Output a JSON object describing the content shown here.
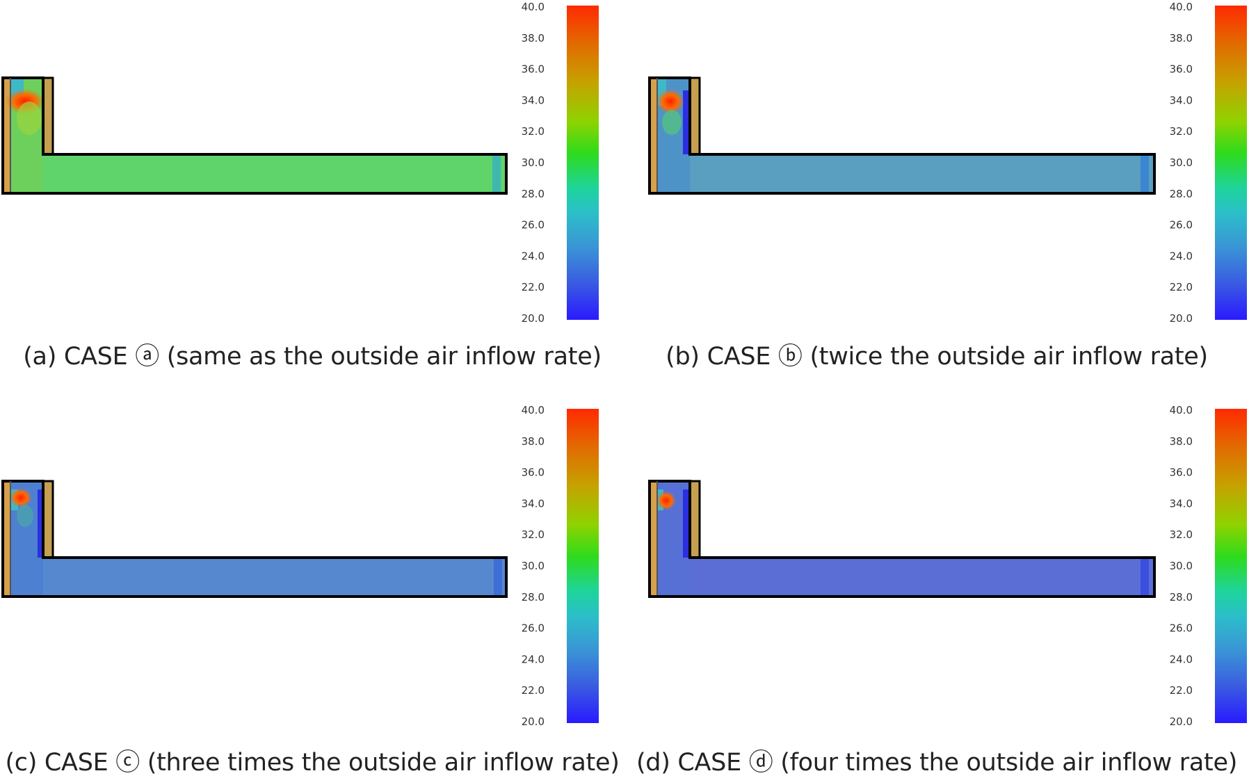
{
  "colorbar": {
    "min": 20.0,
    "max": 40.0,
    "ticks": [
      "40.0",
      "38.0",
      "36.0",
      "34.0",
      "32.0",
      "30.0",
      "28.0",
      "26.0",
      "24.0",
      "22.0",
      "20.0"
    ],
    "stops": [
      "#ff2a00",
      "#e26a00",
      "#c4a400",
      "#8ed300",
      "#2edb1c",
      "#1ed49a",
      "#2bbfc9",
      "#3a94d6",
      "#3a5de0",
      "#2a1aff"
    ]
  },
  "panels": [
    {
      "id": "a",
      "caption": "(a) CASE ⓐ (same as the outside air inflow rate)",
      "corridor_temp": 30.5,
      "corridor_color": "#5fd46a",
      "room_color": "#6dd05c"
    },
    {
      "id": "b",
      "caption": "(b) CASE ⓑ (twice the outside air inflow rate)",
      "corridor_temp": 27.2,
      "corridor_color": "#5a9fc0",
      "room_color": "#4e93c7"
    },
    {
      "id": "c",
      "caption": "(c) CASE ⓒ (three times the outside air inflow rate)",
      "corridor_temp": 25.8,
      "corridor_color": "#5688d0",
      "room_color": "#4e80d2"
    },
    {
      "id": "d",
      "caption": "(d) CASE ⓓ (four times the outside air inflow rate)",
      "corridor_temp": 24.3,
      "corridor_color": "#5a6ed6",
      "room_color": "#5670d6"
    }
  ]
}
